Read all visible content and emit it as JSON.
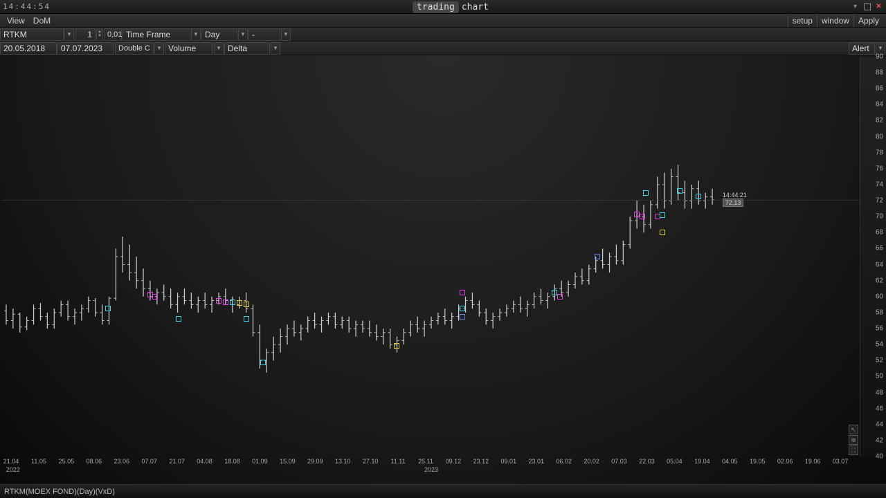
{
  "titlebar": {
    "clock": "14:44:54",
    "brand": "trading",
    "sub": "chart"
  },
  "menubar": {
    "left": [
      "View",
      "DoM"
    ],
    "right": [
      "setup",
      "window",
      "Apply"
    ]
  },
  "toolbar1": {
    "symbol": "RTKM",
    "qty": "1",
    "step": "0,01",
    "tf_label": "Time Frame",
    "tf_value": "Day",
    "extra": "-"
  },
  "toolbar2": {
    "date_from": "20.05.2018",
    "date_to": "07.07.2023",
    "mode": "Double C",
    "ind1": "Volume",
    "ind2": "Delta",
    "alert": "Alert"
  },
  "yaxis": {
    "min": 40,
    "max": 90,
    "step": 2
  },
  "xaxis": {
    "labels": [
      "21.04",
      "11.05",
      "25.05",
      "08.06",
      "23.06",
      "07.07",
      "21.07",
      "04.08",
      "18.08",
      "01.09",
      "15.09",
      "29.09",
      "13.10",
      "27.10",
      "11.11",
      "25.11",
      "09.12",
      "23.12",
      "09.01",
      "23.01",
      "06.02",
      "20.02",
      "07.03",
      "22.03",
      "05.04",
      "19.04",
      "04.05",
      "19.05",
      "02.06",
      "19.06",
      "03.07"
    ],
    "years": [
      {
        "x": 0.012,
        "t": "2022"
      },
      {
        "x": 0.5,
        "t": "2023"
      }
    ]
  },
  "price_tag": {
    "time": "14:44:21",
    "price": "72,13",
    "x_frac": 0.84,
    "y_price": 72.1
  },
  "current_line_price": 72.1,
  "colors": {
    "candle": "#cccccc",
    "marker_magenta": "#e040e0",
    "marker_cyan": "#40d0e0",
    "marker_yellow": "#e0d040",
    "marker_blue": "#6080e0"
  },
  "candles": [
    {
      "x": 0.004,
      "o": 58.2,
      "h": 59.0,
      "l": 56.5,
      "c": 57.0
    },
    {
      "x": 0.012,
      "o": 57.0,
      "h": 58.5,
      "l": 56.0,
      "c": 57.8
    },
    {
      "x": 0.02,
      "o": 57.8,
      "h": 58.0,
      "l": 55.5,
      "c": 56.2
    },
    {
      "x": 0.028,
      "o": 56.2,
      "h": 57.5,
      "l": 55.8,
      "c": 57.0
    },
    {
      "x": 0.036,
      "o": 57.0,
      "h": 59.0,
      "l": 56.5,
      "c": 58.5
    },
    {
      "x": 0.044,
      "o": 58.5,
      "h": 59.2,
      "l": 57.0,
      "c": 57.5
    },
    {
      "x": 0.052,
      "o": 57.5,
      "h": 58.0,
      "l": 56.0,
      "c": 56.5
    },
    {
      "x": 0.06,
      "o": 56.5,
      "h": 58.5,
      "l": 56.0,
      "c": 58.0
    },
    {
      "x": 0.068,
      "o": 58.0,
      "h": 59.5,
      "l": 57.5,
      "c": 59.0
    },
    {
      "x": 0.076,
      "o": 59.0,
      "h": 59.5,
      "l": 57.0,
      "c": 57.5
    },
    {
      "x": 0.084,
      "o": 57.5,
      "h": 58.5,
      "l": 56.5,
      "c": 58.0
    },
    {
      "x": 0.092,
      "o": 58.0,
      "h": 59.0,
      "l": 57.0,
      "c": 58.5
    },
    {
      "x": 0.1,
      "o": 58.5,
      "h": 60.0,
      "l": 58.0,
      "c": 59.5
    },
    {
      "x": 0.108,
      "o": 59.5,
      "h": 59.8,
      "l": 57.5,
      "c": 58.0
    },
    {
      "x": 0.116,
      "o": 58.0,
      "h": 59.0,
      "l": 56.5,
      "c": 57.0
    },
    {
      "x": 0.124,
      "o": 57.0,
      "h": 60.0,
      "l": 56.5,
      "c": 59.8
    },
    {
      "x": 0.132,
      "o": 59.8,
      "h": 66.0,
      "l": 59.5,
      "c": 65.0
    },
    {
      "x": 0.14,
      "o": 65.0,
      "h": 67.5,
      "l": 63.0,
      "c": 64.0
    },
    {
      "x": 0.148,
      "o": 64.0,
      "h": 66.5,
      "l": 62.0,
      "c": 63.0
    },
    {
      "x": 0.156,
      "o": 63.0,
      "h": 65.0,
      "l": 61.0,
      "c": 62.0
    },
    {
      "x": 0.164,
      "o": 62.0,
      "h": 63.5,
      "l": 60.0,
      "c": 61.0
    },
    {
      "x": 0.172,
      "o": 61.0,
      "h": 62.0,
      "l": 59.5,
      "c": 60.0
    },
    {
      "x": 0.18,
      "o": 60.0,
      "h": 61.0,
      "l": 59.0,
      "c": 60.5
    },
    {
      "x": 0.188,
      "o": 60.5,
      "h": 61.5,
      "l": 59.5,
      "c": 60.0
    },
    {
      "x": 0.196,
      "o": 60.0,
      "h": 61.0,
      "l": 58.5,
      "c": 59.0
    },
    {
      "x": 0.204,
      "o": 59.0,
      "h": 60.5,
      "l": 58.0,
      "c": 60.0
    },
    {
      "x": 0.212,
      "o": 60.0,
      "h": 61.0,
      "l": 59.0,
      "c": 59.5
    },
    {
      "x": 0.22,
      "o": 59.5,
      "h": 60.5,
      "l": 58.5,
      "c": 59.0
    },
    {
      "x": 0.228,
      "o": 59.0,
      "h": 60.0,
      "l": 58.0,
      "c": 59.5
    },
    {
      "x": 0.236,
      "o": 59.5,
      "h": 60.5,
      "l": 58.5,
      "c": 59.0
    },
    {
      "x": 0.244,
      "o": 59.0,
      "h": 60.0,
      "l": 58.0,
      "c": 59.5
    },
    {
      "x": 0.252,
      "o": 59.5,
      "h": 60.5,
      "l": 59.0,
      "c": 60.0
    },
    {
      "x": 0.26,
      "o": 60.0,
      "h": 61.0,
      "l": 59.0,
      "c": 59.5
    },
    {
      "x": 0.268,
      "o": 59.5,
      "h": 60.0,
      "l": 58.0,
      "c": 59.0
    },
    {
      "x": 0.276,
      "o": 59.0,
      "h": 60.0,
      "l": 58.5,
      "c": 59.5
    },
    {
      "x": 0.284,
      "o": 59.5,
      "h": 60.5,
      "l": 58.0,
      "c": 58.5
    },
    {
      "x": 0.292,
      "o": 58.5,
      "h": 59.0,
      "l": 55.0,
      "c": 55.5
    },
    {
      "x": 0.3,
      "o": 55.5,
      "h": 56.5,
      "l": 51.0,
      "c": 52.0
    },
    {
      "x": 0.308,
      "o": 52.0,
      "h": 53.5,
      "l": 50.5,
      "c": 53.0
    },
    {
      "x": 0.316,
      "o": 53.0,
      "h": 55.0,
      "l": 52.0,
      "c": 54.0
    },
    {
      "x": 0.324,
      "o": 54.0,
      "h": 56.0,
      "l": 53.0,
      "c": 55.0
    },
    {
      "x": 0.332,
      "o": 55.0,
      "h": 56.5,
      "l": 54.0,
      "c": 56.0
    },
    {
      "x": 0.34,
      "o": 56.0,
      "h": 57.0,
      "l": 55.0,
      "c": 55.5
    },
    {
      "x": 0.348,
      "o": 55.5,
      "h": 56.5,
      "l": 54.5,
      "c": 56.0
    },
    {
      "x": 0.356,
      "o": 56.0,
      "h": 57.5,
      "l": 55.5,
      "c": 57.0
    },
    {
      "x": 0.364,
      "o": 57.0,
      "h": 58.0,
      "l": 56.0,
      "c": 56.5
    },
    {
      "x": 0.372,
      "o": 56.5,
      "h": 57.5,
      "l": 55.5,
      "c": 57.0
    },
    {
      "x": 0.38,
      "o": 57.0,
      "h": 58.0,
      "l": 56.5,
      "c": 57.5
    },
    {
      "x": 0.388,
      "o": 57.5,
      "h": 58.0,
      "l": 56.0,
      "c": 56.5
    },
    {
      "x": 0.396,
      "o": 56.5,
      "h": 57.5,
      "l": 56.0,
      "c": 57.0
    },
    {
      "x": 0.404,
      "o": 57.0,
      "h": 57.5,
      "l": 55.5,
      "c": 56.0
    },
    {
      "x": 0.412,
      "o": 56.0,
      "h": 57.0,
      "l": 55.0,
      "c": 56.5
    },
    {
      "x": 0.42,
      "o": 56.5,
      "h": 57.0,
      "l": 55.5,
      "c": 56.0
    },
    {
      "x": 0.428,
      "o": 56.0,
      "h": 57.0,
      "l": 55.0,
      "c": 55.5
    },
    {
      "x": 0.436,
      "o": 55.5,
      "h": 56.5,
      "l": 54.5,
      "c": 55.0
    },
    {
      "x": 0.444,
      "o": 55.0,
      "h": 56.0,
      "l": 54.0,
      "c": 55.5
    },
    {
      "x": 0.452,
      "o": 55.5,
      "h": 56.0,
      "l": 53.5,
      "c": 54.0
    },
    {
      "x": 0.46,
      "o": 54.0,
      "h": 55.0,
      "l": 53.0,
      "c": 54.5
    },
    {
      "x": 0.468,
      "o": 54.5,
      "h": 56.0,
      "l": 54.0,
      "c": 55.5
    },
    {
      "x": 0.476,
      "o": 55.5,
      "h": 57.0,
      "l": 55.0,
      "c": 56.5
    },
    {
      "x": 0.484,
      "o": 56.5,
      "h": 57.5,
      "l": 55.5,
      "c": 56.0
    },
    {
      "x": 0.492,
      "o": 56.0,
      "h": 57.0,
      "l": 55.0,
      "c": 56.5
    },
    {
      "x": 0.5,
      "o": 56.5,
      "h": 57.5,
      "l": 56.0,
      "c": 57.0
    },
    {
      "x": 0.508,
      "o": 57.0,
      "h": 58.0,
      "l": 56.5,
      "c": 57.5
    },
    {
      "x": 0.516,
      "o": 57.5,
      "h": 58.5,
      "l": 56.5,
      "c": 57.0
    },
    {
      "x": 0.524,
      "o": 57.0,
      "h": 58.0,
      "l": 56.0,
      "c": 57.5
    },
    {
      "x": 0.532,
      "o": 57.5,
      "h": 59.0,
      "l": 57.0,
      "c": 58.5
    },
    {
      "x": 0.54,
      "o": 58.5,
      "h": 60.0,
      "l": 58.0,
      "c": 59.5
    },
    {
      "x": 0.548,
      "o": 59.5,
      "h": 60.5,
      "l": 58.5,
      "c": 59.0
    },
    {
      "x": 0.556,
      "o": 59.0,
      "h": 59.5,
      "l": 57.5,
      "c": 58.0
    },
    {
      "x": 0.564,
      "o": 58.0,
      "h": 58.5,
      "l": 56.5,
      "c": 57.0
    },
    {
      "x": 0.572,
      "o": 57.0,
      "h": 58.0,
      "l": 56.0,
      "c": 57.5
    },
    {
      "x": 0.58,
      "o": 57.5,
      "h": 58.5,
      "l": 57.0,
      "c": 58.0
    },
    {
      "x": 0.588,
      "o": 58.0,
      "h": 59.0,
      "l": 57.5,
      "c": 58.5
    },
    {
      "x": 0.596,
      "o": 58.5,
      "h": 59.5,
      "l": 58.0,
      "c": 59.0
    },
    {
      "x": 0.604,
      "o": 59.0,
      "h": 60.0,
      "l": 58.0,
      "c": 58.5
    },
    {
      "x": 0.612,
      "o": 58.5,
      "h": 59.5,
      "l": 57.5,
      "c": 59.0
    },
    {
      "x": 0.62,
      "o": 59.0,
      "h": 60.5,
      "l": 58.5,
      "c": 60.0
    },
    {
      "x": 0.628,
      "o": 60.0,
      "h": 61.0,
      "l": 59.0,
      "c": 59.5
    },
    {
      "x": 0.636,
      "o": 59.5,
      "h": 60.5,
      "l": 58.5,
      "c": 60.0
    },
    {
      "x": 0.644,
      "o": 60.0,
      "h": 61.5,
      "l": 59.5,
      "c": 61.0
    },
    {
      "x": 0.652,
      "o": 61.0,
      "h": 62.0,
      "l": 60.0,
      "c": 60.5
    },
    {
      "x": 0.66,
      "o": 60.5,
      "h": 62.0,
      "l": 60.0,
      "c": 61.5
    },
    {
      "x": 0.668,
      "o": 61.5,
      "h": 63.0,
      "l": 61.0,
      "c": 62.5
    },
    {
      "x": 0.676,
      "o": 62.5,
      "h": 63.5,
      "l": 61.5,
      "c": 62.0
    },
    {
      "x": 0.684,
      "o": 62.0,
      "h": 64.0,
      "l": 61.5,
      "c": 63.5
    },
    {
      "x": 0.692,
      "o": 63.5,
      "h": 65.0,
      "l": 63.0,
      "c": 64.5
    },
    {
      "x": 0.7,
      "o": 64.5,
      "h": 66.0,
      "l": 63.5,
      "c": 64.0
    },
    {
      "x": 0.708,
      "o": 64.0,
      "h": 65.5,
      "l": 63.0,
      "c": 65.0
    },
    {
      "x": 0.716,
      "o": 65.0,
      "h": 66.5,
      "l": 64.0,
      "c": 64.5
    },
    {
      "x": 0.724,
      "o": 64.5,
      "h": 67.0,
      "l": 64.0,
      "c": 66.5
    },
    {
      "x": 0.732,
      "o": 66.5,
      "h": 70.0,
      "l": 66.0,
      "c": 69.5
    },
    {
      "x": 0.74,
      "o": 69.5,
      "h": 72.0,
      "l": 68.5,
      "c": 70.0
    },
    {
      "x": 0.748,
      "o": 70.0,
      "h": 71.5,
      "l": 68.0,
      "c": 69.0
    },
    {
      "x": 0.756,
      "o": 69.0,
      "h": 72.0,
      "l": 68.5,
      "c": 71.5
    },
    {
      "x": 0.764,
      "o": 71.5,
      "h": 75.0,
      "l": 71.0,
      "c": 74.0
    },
    {
      "x": 0.772,
      "o": 74.0,
      "h": 75.5,
      "l": 71.0,
      "c": 72.0
    },
    {
      "x": 0.78,
      "o": 72.0,
      "h": 76.0,
      "l": 71.5,
      "c": 75.0
    },
    {
      "x": 0.788,
      "o": 75.0,
      "h": 76.5,
      "l": 72.0,
      "c": 73.0
    },
    {
      "x": 0.796,
      "o": 73.0,
      "h": 74.5,
      "l": 71.0,
      "c": 72.0
    },
    {
      "x": 0.804,
      "o": 72.0,
      "h": 74.0,
      "l": 71.0,
      "c": 73.5
    },
    {
      "x": 0.812,
      "o": 73.5,
      "h": 74.5,
      "l": 71.5,
      "c": 72.0
    },
    {
      "x": 0.82,
      "o": 72.0,
      "h": 73.0,
      "l": 71.0,
      "c": 72.5
    },
    {
      "x": 0.828,
      "o": 72.5,
      "h": 73.5,
      "l": 71.5,
      "c": 72.1
    }
  ],
  "markers": [
    {
      "x": 0.123,
      "p": 58.5,
      "c": "cyan"
    },
    {
      "x": 0.172,
      "p": 60.2,
      "c": "magenta"
    },
    {
      "x": 0.178,
      "p": 60.0,
      "c": "magenta"
    },
    {
      "x": 0.205,
      "p": 57.2,
      "c": "cyan"
    },
    {
      "x": 0.252,
      "p": 59.5,
      "c": "magenta"
    },
    {
      "x": 0.26,
      "p": 59.3,
      "c": "magenta"
    },
    {
      "x": 0.268,
      "p": 59.3,
      "c": "cyan"
    },
    {
      "x": 0.276,
      "p": 59.2,
      "c": "yellow"
    },
    {
      "x": 0.284,
      "p": 59.0,
      "c": "yellow"
    },
    {
      "x": 0.284,
      "p": 57.2,
      "c": "cyan"
    },
    {
      "x": 0.304,
      "p": 51.8,
      "c": "cyan"
    },
    {
      "x": 0.46,
      "p": 53.8,
      "c": "yellow"
    },
    {
      "x": 0.536,
      "p": 60.5,
      "c": "magenta"
    },
    {
      "x": 0.536,
      "p": 58.5,
      "c": "cyan"
    },
    {
      "x": 0.536,
      "p": 57.5,
      "c": "blue"
    },
    {
      "x": 0.644,
      "p": 60.5,
      "c": "cyan"
    },
    {
      "x": 0.65,
      "p": 60.0,
      "c": "magenta"
    },
    {
      "x": 0.694,
      "p": 65.0,
      "c": "blue"
    },
    {
      "x": 0.74,
      "p": 70.3,
      "c": "magenta"
    },
    {
      "x": 0.746,
      "p": 70.0,
      "c": "magenta"
    },
    {
      "x": 0.75,
      "p": 73.0,
      "c": "cyan"
    },
    {
      "x": 0.764,
      "p": 70.0,
      "c": "magenta"
    },
    {
      "x": 0.77,
      "p": 70.2,
      "c": "cyan"
    },
    {
      "x": 0.77,
      "p": 68.0,
      "c": "yellow"
    },
    {
      "x": 0.79,
      "p": 73.2,
      "c": "cyan"
    },
    {
      "x": 0.812,
      "p": 72.5,
      "c": "cyan"
    }
  ],
  "status": "RTKM(MOEX FOND)(Day)(VxD)"
}
